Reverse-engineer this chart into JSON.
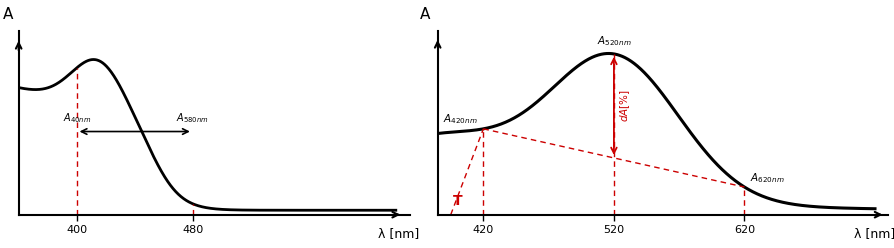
{
  "bg_color": "#ffffff",
  "left_xticks": [
    400,
    480
  ],
  "left_xlabel": "λ [nm]",
  "left_ylabel": "A",
  "right_xticks": [
    420,
    520,
    620
  ],
  "right_xlabel": "λ [nm]",
  "right_ylabel": "A",
  "dashed_color": "#cc0000",
  "line_color": "#000000",
  "arrow_color": "#cc0000"
}
